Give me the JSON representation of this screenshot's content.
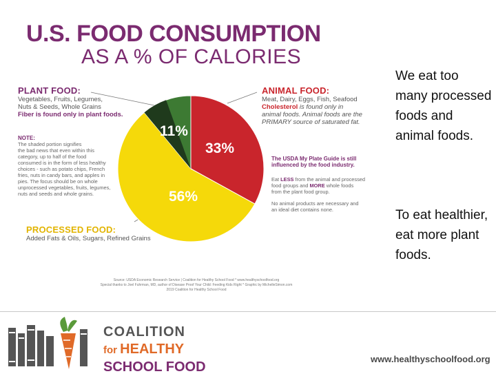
{
  "title": "U.S. FOOD CONSUMPTION",
  "subtitle": "AS A % OF CALORIES",
  "chart_data": {
    "type": "pie",
    "slices": [
      {
        "name": "ANIMAL FOOD",
        "value": 33,
        "label": "33%",
        "color": "#c9252c"
      },
      {
        "name": "PROCESSED FOOD",
        "value": 56,
        "label": "56%",
        "color": "#f5d90a"
      },
      {
        "name": "PLANT FOOD",
        "value": 11,
        "label": "11%",
        "color": "#3d7a33"
      }
    ]
  },
  "plant": {
    "heading": "PLANT FOOD:",
    "line1": "Vegetables, Fruits, Legumes,",
    "line2": "Nuts & Seeds, Whole Grains",
    "fiber": "Fiber is found only in plant foods."
  },
  "note": {
    "heading": "NOTE:",
    "lines": [
      "The shaded portion signifies",
      "the bad news that even within this",
      "category, up to half of the food",
      "consumed is in the form of less healthy",
      "choices - such as potato chips, French",
      "fries, nuts in candy bars, and apples in",
      "pies. The focus should be on whole",
      "unprocessed vegetables, fruits, legumes,",
      "nuts and seeds and whole grains."
    ]
  },
  "animal": {
    "heading": "ANIMAL FOOD:",
    "line1": "Meat, Dairy, Eggs, Fish, Seafood",
    "chol_bold": "Cholesterol",
    "chol_rest": " is found only in",
    "line3": "animal foods. Animal foods are the",
    "line4": "PRIMARY source of saturated fat."
  },
  "usda": {
    "line1": "The USDA My Plate Guide is still",
    "line2": "influenced by the food industry.",
    "eat1": "Eat ",
    "less": "LESS",
    "eat2": " from the animal and processed",
    "eat3": "food groups and ",
    "more": "MORE",
    "eat4": " whole foods",
    "eat5": "from the plant food group.",
    "no1": "No animal products are necessary and",
    "no2": "an ideal diet contains none."
  },
  "processed": {
    "heading": "PROCESSED FOOD:",
    "line1": "Added Fats & Oils, Sugars, Refined Grains"
  },
  "source": {
    "line1": "Source: USDA Economic Research Service | Coalition for Healthy School Food * www.healthyschoolfood.org",
    "line2": "Special thanks to Joel Fuhrman, MD, author of Disease Proof Your Child: Feeding Kids Right * Graphic by MichelleSimon.com",
    "line3": "2019 Coalition for Healthy School Food"
  },
  "side": {
    "p1": "We eat too many processed foods and animal foods.",
    "p2": "To eat healthier, eat more plant foods."
  },
  "logo": {
    "line1": "COALITION",
    "for": "for ",
    "healthy": "HEALTHY",
    "line3": "SCHOOL FOOD"
  },
  "website": "www.healthyschoolfood.org"
}
